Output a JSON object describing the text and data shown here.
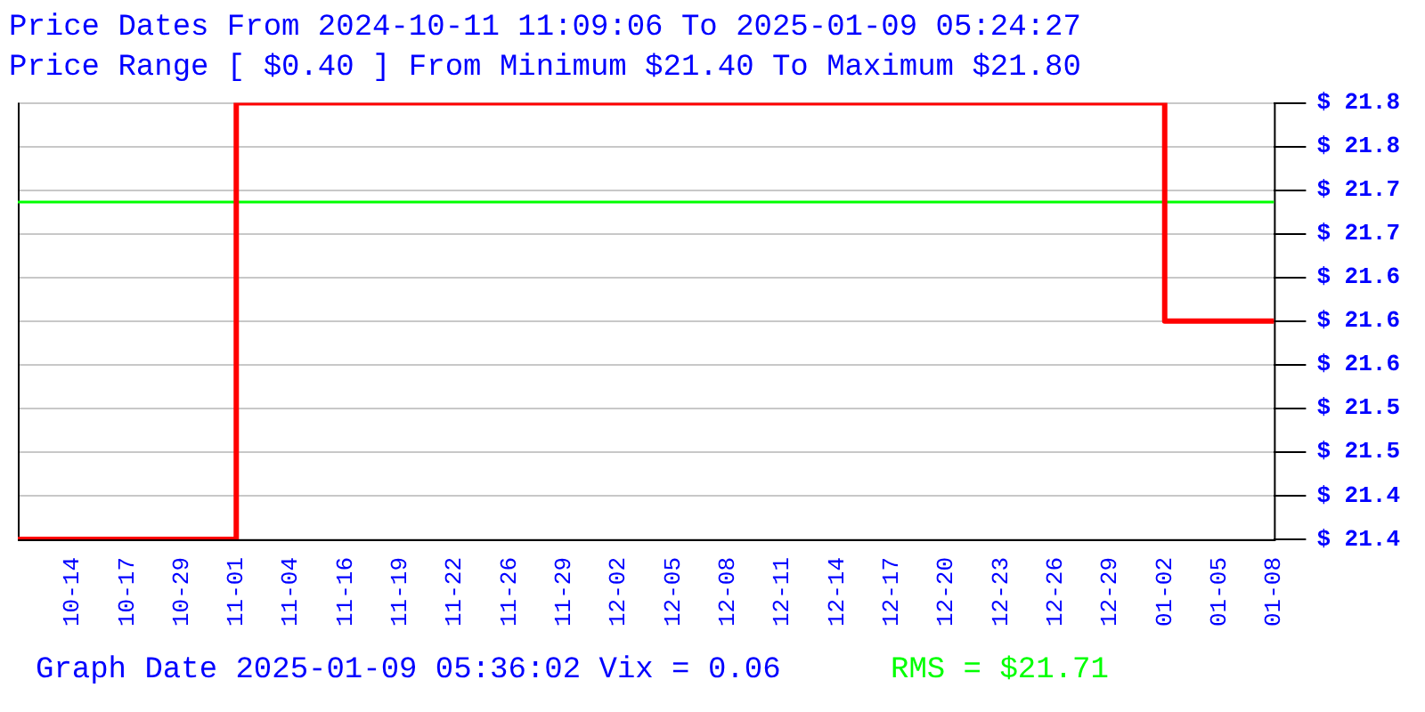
{
  "chart_data": {
    "type": "step",
    "title": "Price Dates From 2024-10-11 11:09:06 To 2025-01-09 05:24:27",
    "subtitle": "Price Range [ $0.40 ] From Minimum $21.40 To Maximum $21.80",
    "categories": [
      null,
      "10-14",
      "10-17",
      "10-29",
      "11-01",
      "11-04",
      "11-16",
      "11-19",
      "11-22",
      "11-26",
      "11-29",
      "12-02",
      "12-05",
      "12-08",
      "12-11",
      "12-14",
      "12-17",
      "12-20",
      "12-23",
      "12-26",
      "12-29",
      "01-02",
      "01-05",
      "01-08"
    ],
    "values": [
      21.4,
      21.4,
      21.4,
      21.4,
      21.8,
      21.8,
      21.8,
      21.8,
      21.8,
      21.8,
      21.8,
      21.8,
      21.8,
      21.8,
      21.8,
      21.8,
      21.8,
      21.8,
      21.8,
      21.8,
      21.8,
      21.6,
      21.6,
      21.6
    ],
    "color": "#ff0000",
    "ylim": [
      21.4,
      21.8
    ],
    "yticks": [
      {
        "value": 21.4,
        "label": "$ 21.4"
      },
      {
        "value": 21.44,
        "label": "$ 21.4"
      },
      {
        "value": 21.48,
        "label": "$ 21.5"
      },
      {
        "value": 21.52,
        "label": "$ 21.5"
      },
      {
        "value": 21.56,
        "label": "$ 21.6"
      },
      {
        "value": 21.6,
        "label": "$ 21.6"
      },
      {
        "value": 21.64,
        "label": "$ 21.6"
      },
      {
        "value": 21.68,
        "label": "$ 21.7"
      },
      {
        "value": 21.72,
        "label": "$ 21.7"
      },
      {
        "value": 21.76,
        "label": "$ 21.8"
      },
      {
        "value": 21.8,
        "label": "$ 21.8"
      }
    ],
    "grid": "y",
    "ref_lines": [
      {
        "axis": "y",
        "value": 21.71,
        "label": "RMS = $21.71",
        "color": "#00ff00"
      }
    ],
    "annotations": [
      "Graph Date 2025-01-09 05:36:02 Vix = 0.06"
    ]
  }
}
